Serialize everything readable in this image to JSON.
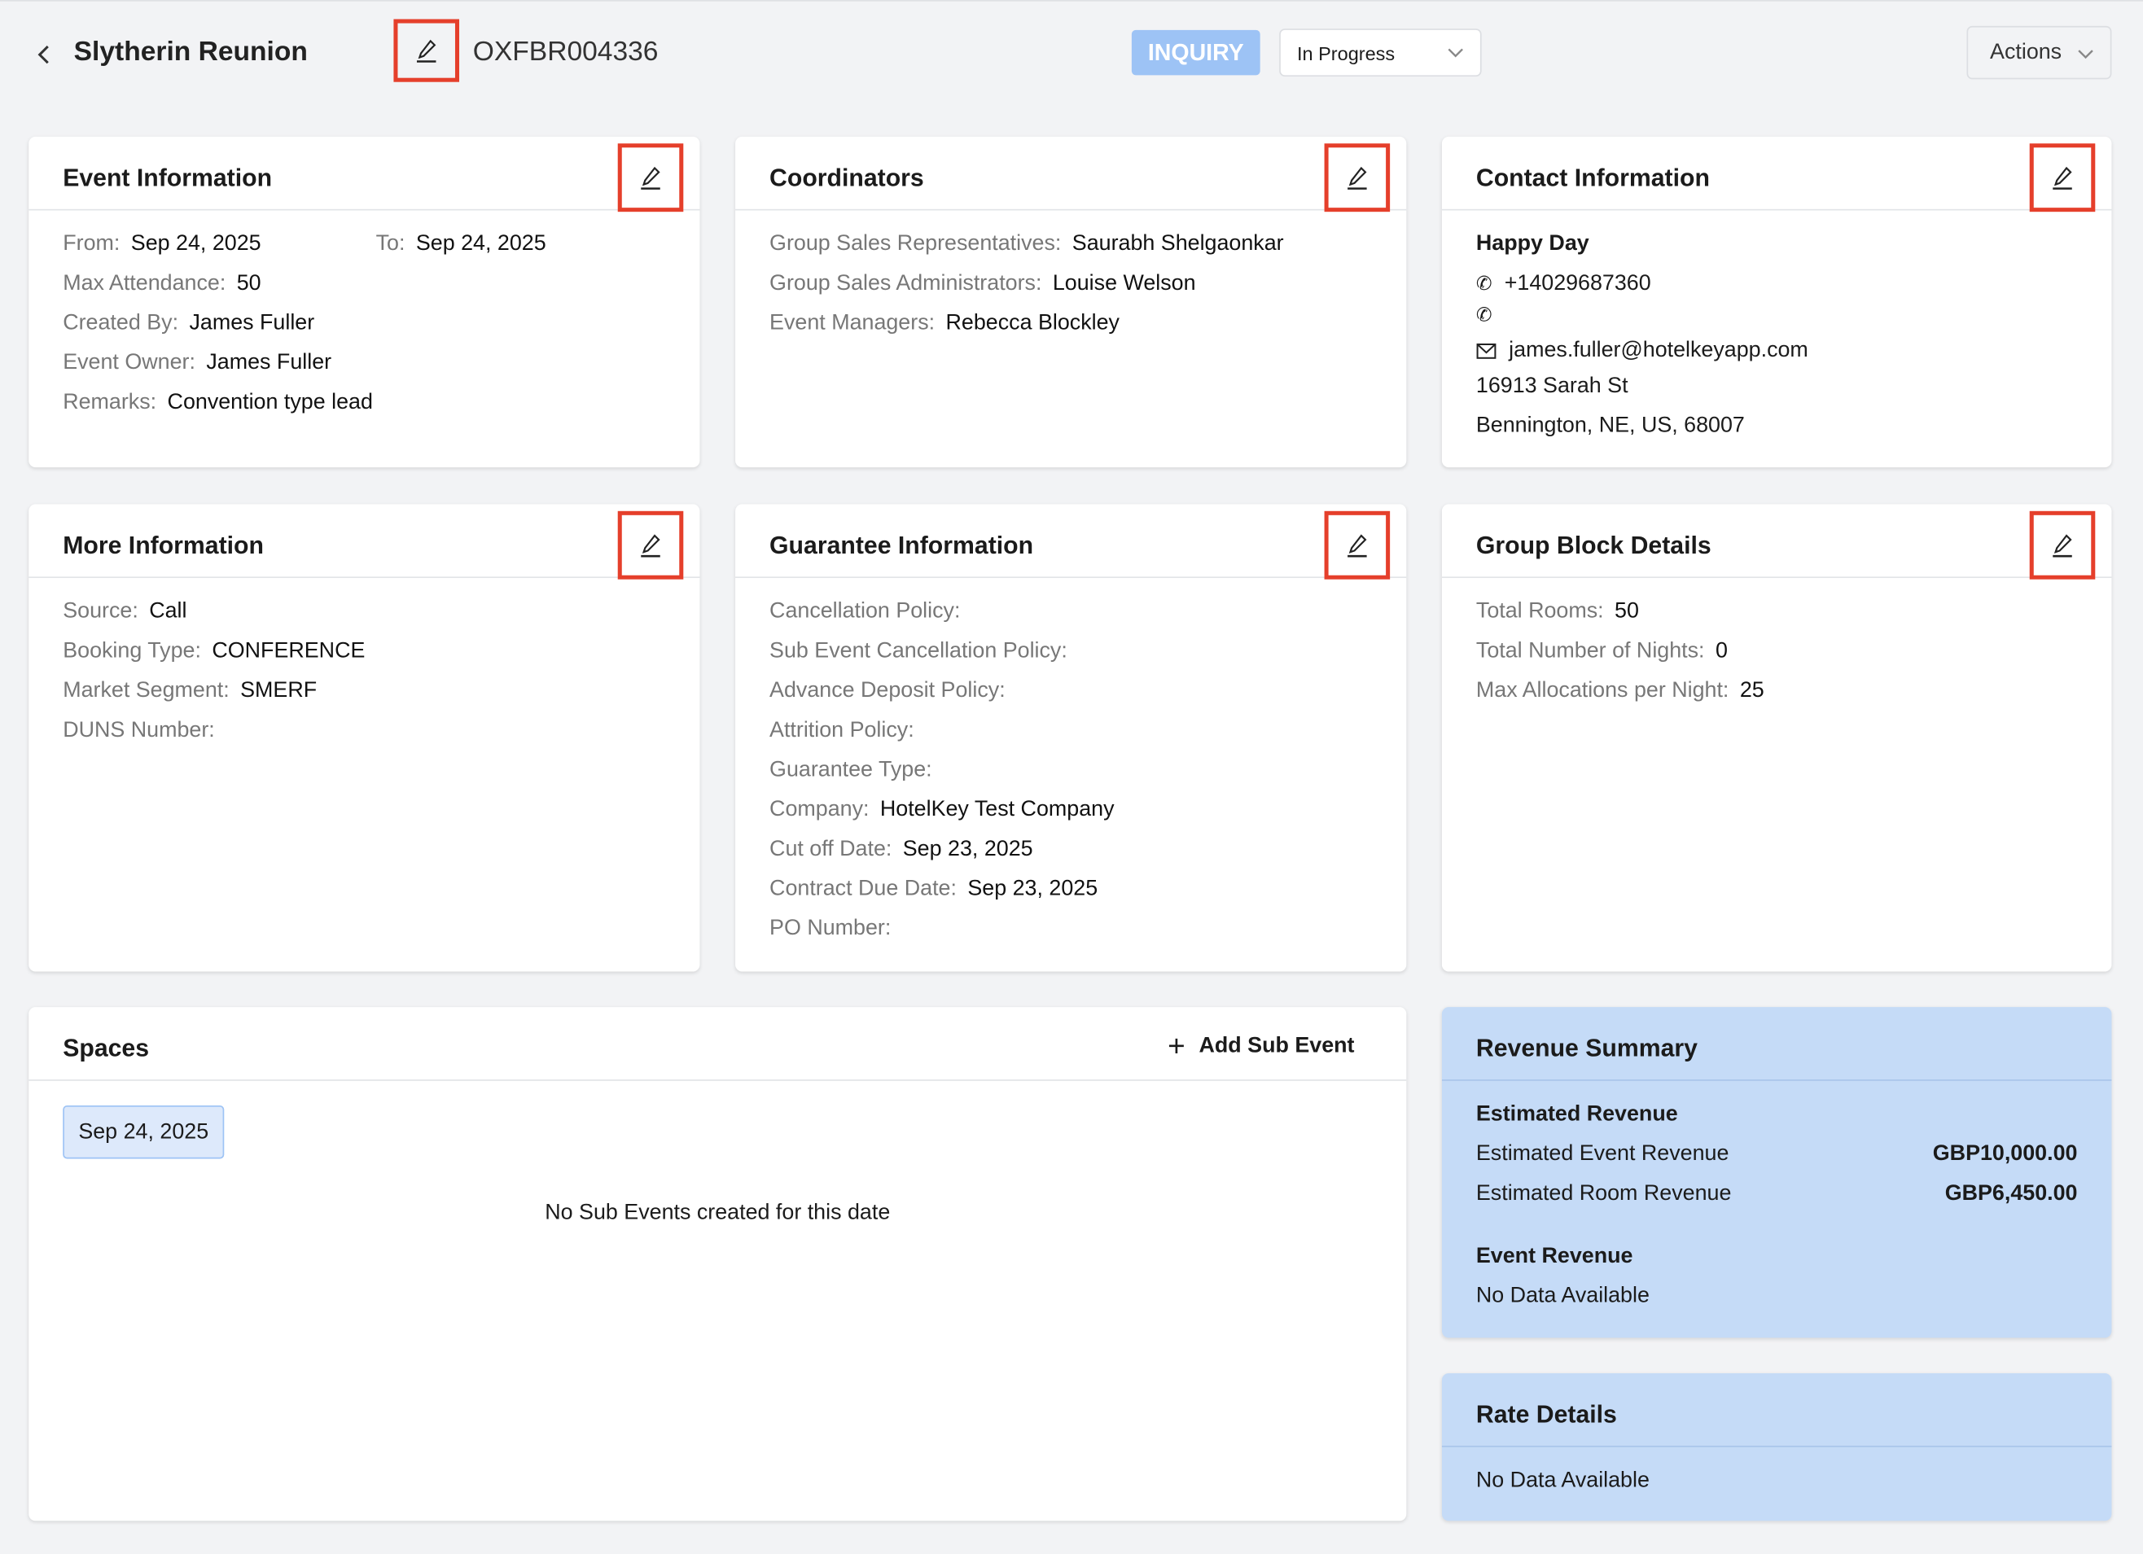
{
  "header": {
    "title": "Slytherin Reunion",
    "event_id": "OXFBR004336",
    "type_badge": "INQUIRY",
    "status": "In Progress",
    "actions_label": "Actions"
  },
  "colors": {
    "accent_badge": "#9dc3f5",
    "highlight_box": "#e53f2b",
    "summary_bg": "#c5dbf7"
  },
  "event_info": {
    "title": "Event Information",
    "from_label": "From:",
    "from": "Sep 24, 2025",
    "to_label": "To:",
    "to": "Sep 24, 2025",
    "rows": [
      {
        "label": "Max Attendance:",
        "value": "50"
      },
      {
        "label": "Created By:",
        "value": "James Fuller"
      },
      {
        "label": "Event Owner:",
        "value": "James Fuller"
      },
      {
        "label": "Remarks:",
        "value": "Convention type lead"
      }
    ]
  },
  "coordinators": {
    "title": "Coordinators",
    "rows": [
      {
        "label": "Group Sales Representatives:",
        "value": "Saurabh Shelgaonkar"
      },
      {
        "label": "Group Sales Administrators:",
        "value": "Louise Welson"
      },
      {
        "label": "Event Managers:",
        "value": "Rebecca Blockley"
      }
    ]
  },
  "contact": {
    "title": "Contact Information",
    "name": "Happy Day",
    "phone": "+14029687360",
    "phone2": "",
    "email": "james.fuller@hotelkeyapp.com",
    "address1": "16913 Sarah St",
    "address2": "Bennington, NE, US, 68007"
  },
  "more_info": {
    "title": "More Information",
    "rows": [
      {
        "label": "Source:",
        "value": "Call"
      },
      {
        "label": "Booking Type:",
        "value": "CONFERENCE"
      },
      {
        "label": "Market Segment:",
        "value": "SMERF"
      },
      {
        "label": "DUNS Number:",
        "value": ""
      }
    ]
  },
  "guarantee": {
    "title": "Guarantee Information",
    "rows": [
      {
        "label": "Cancellation Policy:",
        "value": ""
      },
      {
        "label": "Sub Event Cancellation Policy:",
        "value": ""
      },
      {
        "label": "Advance Deposit Policy:",
        "value": ""
      },
      {
        "label": "Attrition Policy:",
        "value": ""
      },
      {
        "label": "Guarantee Type:",
        "value": ""
      },
      {
        "label": "Company:",
        "value": "HotelKey Test Company"
      },
      {
        "label": "Cut off Date:",
        "value": "Sep 23, 2025"
      },
      {
        "label": "Contract Due Date:",
        "value": "Sep 23, 2025"
      },
      {
        "label": "PO Number:",
        "value": ""
      }
    ]
  },
  "group_block": {
    "title": "Group Block Details",
    "rows": [
      {
        "label": "Total Rooms:",
        "value": "50"
      },
      {
        "label": "Total Number of Nights:",
        "value": "0"
      },
      {
        "label": "Max Allocations per Night:",
        "value": "25"
      }
    ]
  },
  "spaces": {
    "title": "Spaces",
    "add_label": "Add Sub Event",
    "date_chip": "Sep 24, 2025",
    "empty": "No Sub Events created for this date"
  },
  "revenue": {
    "title": "Revenue Summary",
    "estimated_heading": "Estimated Revenue",
    "rows": [
      {
        "label": "Estimated Event Revenue",
        "value": "GBP10,000.00"
      },
      {
        "label": "Estimated Room Revenue",
        "value": "GBP6,450.00"
      }
    ],
    "event_heading": "Event Revenue",
    "event_empty": "No Data Available"
  },
  "rate": {
    "title": "Rate Details",
    "empty": "No Data Available"
  }
}
